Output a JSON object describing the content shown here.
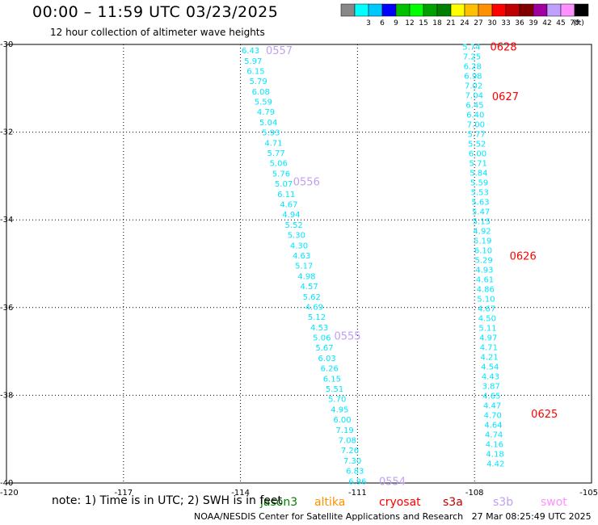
{
  "header": {
    "title": "00:00 – 11:59 UTC 03/23/2025",
    "subtitle": "12 hour collection of altimeter wave heights"
  },
  "color_scale": {
    "bins": [
      {
        "label": "",
        "color": "#888888"
      },
      {
        "label": "3",
        "color": "#00ffff"
      },
      {
        "label": "6",
        "color": "#00c8ff"
      },
      {
        "label": "9",
        "color": "#0000ff"
      },
      {
        "label": "12",
        "color": "#00c000"
      },
      {
        "label": "15",
        "color": "#00ff00"
      },
      {
        "label": "18",
        "color": "#00a000"
      },
      {
        "label": "21",
        "color": "#008000"
      },
      {
        "label": "24",
        "color": "#ffff00"
      },
      {
        "label": "27",
        "color": "#ffc000"
      },
      {
        "label": "30",
        "color": "#ff9000"
      },
      {
        "label": "33",
        "color": "#ff0000"
      },
      {
        "label": "36",
        "color": "#c00000"
      },
      {
        "label": "39",
        "color": "#800000"
      },
      {
        "label": "42",
        "color": "#a000a0"
      },
      {
        "label": "45",
        "color": "#c0a0ff"
      },
      {
        "label": "70",
        "color": "#ff90ff"
      },
      {
        "label": "",
        "color": "#000000"
      }
    ],
    "unit": "(ft)"
  },
  "chart_data": {
    "type": "scatter",
    "xlim": [
      -120,
      -105
    ],
    "ylim": [
      -40,
      -30
    ],
    "x_ticks": [
      -120,
      -117,
      -114,
      -111,
      -108,
      -105
    ],
    "x_tick_labels": [
      "-120",
      "-117",
      "-114",
      "-111",
      "-108",
      "-105"
    ],
    "y_ticks": [
      -30,
      -32,
      -34,
      -36,
      -38,
      -40
    ],
    "y_tick_labels": [
      "-30",
      "-32",
      "-34",
      "-36",
      "-38",
      "-40"
    ],
    "grid": true,
    "value_color": "#00e5ff",
    "tracks": [
      {
        "name": "west track",
        "start": [
          -113.74,
          -30.13
        ],
        "end": [
          -111.0,
          -39.95
        ],
        "values": [
          "6.43",
          "5.97",
          "6.15",
          "5.79",
          "6.08",
          "5.59",
          "4.79",
          "5.04",
          "5.93",
          "4.71",
          "5.77",
          "5.06",
          "5.76",
          "5.07",
          "6.11",
          "4.67",
          "4.94",
          "5.52",
          "5.30",
          "4.30",
          "4.63",
          "5.17",
          "4.98",
          "4.57",
          "5.62",
          "4.69",
          "5.12",
          "4.53",
          "5.06",
          "5.67",
          "6.03",
          "6.26",
          "6.15",
          "5.51",
          "5.70",
          "4.95",
          "6.00",
          "7.19",
          "7.08",
          "7.26",
          "7.30",
          "6.83",
          "6.96"
        ]
      },
      {
        "name": "east track",
        "start": [
          -108.08,
          -30.05
        ],
        "end": [
          -107.46,
          -39.55
        ],
        "values": [
          "5.74",
          "7.25",
          "6.28",
          "6.98",
          "7.02",
          "7.04",
          "6.45",
          "6.40",
          "7.00",
          "5.77",
          "5.52",
          "6.00",
          "5.71",
          "5.84",
          "5.59",
          "5.53",
          "5.63",
          "5.47",
          "5.15",
          "4.92",
          "5.19",
          "6.10",
          "5.29",
          "4.93",
          "4.61",
          "4.86",
          "5.10",
          "4.67",
          "4.50",
          "5.11",
          "4.97",
          "4.71",
          "4.21",
          "4.54",
          "4.43",
          "3.87",
          "4.65",
          "4.47",
          "4.70",
          "4.64",
          "4.74",
          "4.16",
          "4.18",
          "4.42"
        ]
      }
    ],
    "pass_labels": [
      {
        "text": "0557",
        "at": [
          -113.35,
          -30.13
        ],
        "color": "#c0a0f0"
      },
      {
        "text": "0556",
        "at": [
          -112.65,
          -33.12
        ],
        "color": "#c0a0f0"
      },
      {
        "text": "0555",
        "at": [
          -111.6,
          -36.64
        ],
        "color": "#c0a0f0"
      },
      {
        "text": "0554",
        "at": [
          -110.45,
          -39.95
        ],
        "color": "#c0a0f0"
      },
      {
        "text": "0628",
        "at": [
          -107.6,
          -30.05
        ],
        "color": "#ff0000"
      },
      {
        "text": "0627",
        "at": [
          -107.55,
          -31.18
        ],
        "color": "#ff0000"
      },
      {
        "text": "0626",
        "at": [
          -107.1,
          -34.82
        ],
        "color": "#ff0000"
      },
      {
        "text": "0625",
        "at": [
          -106.55,
          -38.42
        ],
        "color": "#ff0000"
      }
    ]
  },
  "note": {
    "text": "note: 1) Time is in UTC; 2) SWH is in feet",
    "satellites": [
      {
        "name": "jason3",
        "color": "#008000"
      },
      {
        "name": "altika",
        "color": "#ff9000"
      },
      {
        "name": "cryosat",
        "color": "#ff0000"
      },
      {
        "name": "s3a",
        "color": "#c00000"
      },
      {
        "name": "s3b",
        "color": "#c0a0f0"
      },
      {
        "name": "swot",
        "color": "#ff90ff"
      }
    ]
  },
  "footer": "NOAA/NESDIS Center for Satellite Applications and Research   27 Mar 08:25:49 UTC 2025"
}
